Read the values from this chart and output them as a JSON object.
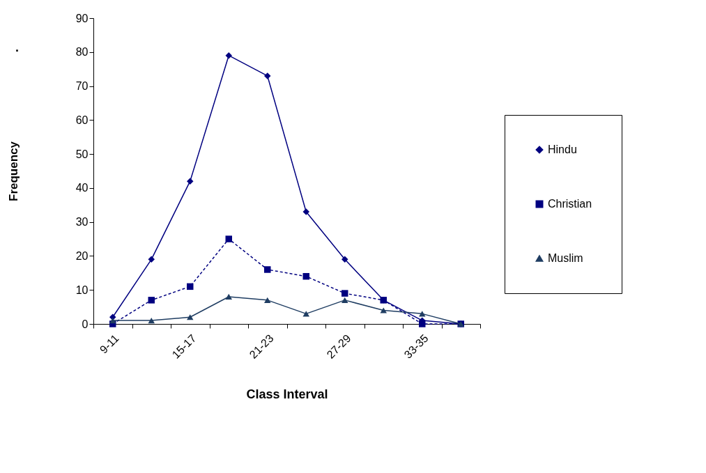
{
  "chart_data": {
    "type": "line",
    "xlabel": "Class Interval",
    "ylabel": "Frequency",
    "annotations": [
      "."
    ],
    "categories": [
      "9-11",
      null,
      "15-17",
      null,
      "21-23",
      null,
      "27-29",
      null,
      "33-35",
      null
    ],
    "series": [
      {
        "name": "Hindu",
        "color": "#000080",
        "marker": "diamond",
        "line_style": "solid",
        "values": [
          2,
          19,
          42,
          79,
          73,
          33,
          19,
          7,
          1,
          0
        ]
      },
      {
        "name": "Christian",
        "color": "#000080",
        "marker": "square",
        "line_style": "dashed",
        "values": [
          0,
          7,
          11,
          25,
          16,
          14,
          9,
          7,
          0,
          0
        ]
      },
      {
        "name": "Muslim",
        "color": "#1f3d62",
        "marker": "triangle",
        "line_style": "solid",
        "values": [
          1,
          1,
          2,
          8,
          7,
          3,
          7,
          4,
          3,
          0
        ]
      }
    ],
    "ylim": [
      0,
      90
    ],
    "yticks": [
      0,
      10,
      20,
      30,
      40,
      50,
      60,
      70,
      80,
      90
    ],
    "grid": false,
    "legend": "right"
  }
}
